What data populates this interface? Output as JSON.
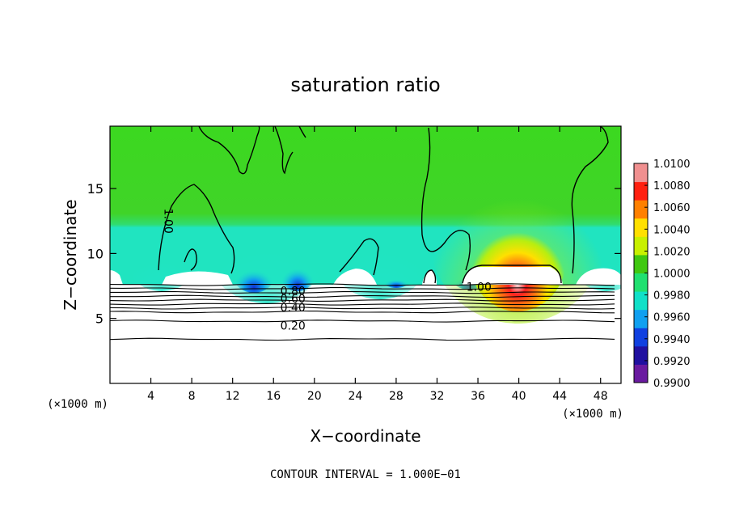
{
  "chart_data": {
    "type": "heatmap",
    "title": "saturation ratio",
    "xlabel": "X−coordinate",
    "ylabel": "Z−coordinate",
    "x_scale_note": "(×1000 m)",
    "y_scale_note": "(×1000 m)",
    "xlim": [
      0,
      50
    ],
    "ylim": [
      0,
      19.8
    ],
    "x_ticks": [
      "4",
      "8",
      "12",
      "16",
      "20",
      "24",
      "28",
      "32",
      "36",
      "40",
      "44",
      "48"
    ],
    "y_ticks": [
      "5",
      "10",
      "15"
    ],
    "footer": "CONTOUR INTERVAL = 1.000E−01",
    "colorbar": {
      "min": 0.99,
      "max": 1.01,
      "tick_labels": [
        "1.0100",
        "1.0080",
        "1.0060",
        "1.0040",
        "1.0020",
        "1.0000",
        "0.9980",
        "0.9960",
        "0.9940",
        "0.9920",
        "0.9900"
      ],
      "colors": [
        "#6a1aa0",
        "#2010a0",
        "#1040e0",
        "#10a0f0",
        "#10e0c8",
        "#20e070",
        "#40c810",
        "#c8f000",
        "#ffe000",
        "#ff8000",
        "#ff2010",
        "#f09090"
      ]
    },
    "contour_labels": [
      {
        "text": "0.20",
        "x": 17.9,
        "z": 4.5
      },
      {
        "text": "0.40",
        "x": 17.9,
        "z": 5.9
      },
      {
        "text": "0.60",
        "x": 17.9,
        "z": 6.6
      },
      {
        "text": "0.80",
        "x": 17.9,
        "z": 7.2
      },
      {
        "text": "1.00",
        "x": 5.8,
        "z": 12.5
      },
      {
        "text": "1.00",
        "x": 36.1,
        "z": 7.5
      }
    ],
    "stable_layer_contours_z": [
      3.4,
      4.8,
      5.5,
      5.8,
      6.1,
      6.4,
      6.7,
      7.0,
      7.3,
      7.6
    ]
  }
}
